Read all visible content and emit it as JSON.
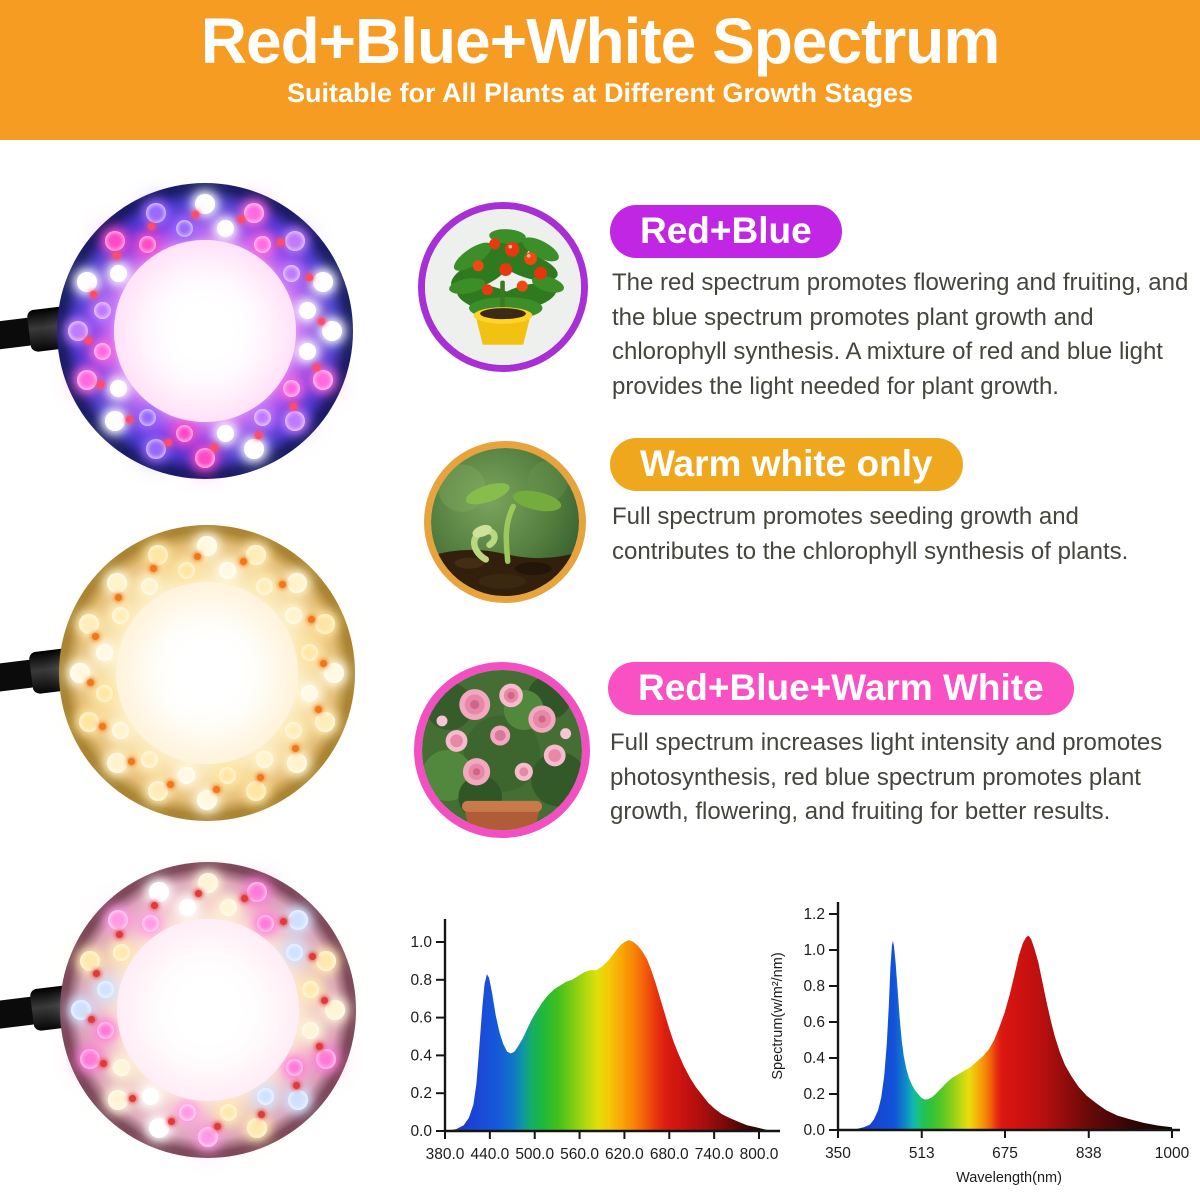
{
  "header": {
    "title": "Red+Blue+White Spectrum",
    "subtitle": "Suitable for All Plants at Different Growth Stages",
    "bg_color": "#F79C23",
    "text_color": "#FFFFFF"
  },
  "sections": [
    {
      "badge": "Red+Blue",
      "badge_color": "#C026E4",
      "description": "The red spectrum promotes flowering and fruiting, and the blue spectrum promotes plant growth and chlorophyll synthesis. A mixture of red and blue light provides the light needed for plant growth.",
      "photo_name": "fruiting-plant-in-yellow-pot",
      "photo_border_color": "#A82FD6"
    },
    {
      "badge": "Warm white only",
      "badge_color": "#EFA81E",
      "description": "Full spectrum promotes seeding growth and contributes to the chlorophyll synthesis of plants.",
      "photo_name": "seedling-sprout",
      "photo_border_color": "#E8A33C"
    },
    {
      "badge": "Red+Blue+Warm White",
      "badge_color": "#F951C3",
      "description": "Full spectrum increases light intensity and promotes photosynthesis, red blue spectrum promotes plant growth, flowering, and fruiting for better results.",
      "photo_name": "pink-roses-bush",
      "photo_border_color": "#F24FC2"
    }
  ],
  "rings": [
    {
      "name": "red-blue-ring-light",
      "label": "Red + Blue mode ring light",
      "band": [
        "#f3c9ff",
        "#c269f0",
        "#7b3be4",
        "#3e31c8",
        "#171a66"
      ],
      "led_colors": [
        "#ffffff",
        "#ff6ae0",
        "#c07cff",
        "#ffffff",
        "#ff49c8",
        "#9a6bff"
      ],
      "chip_color": "#ff4a6a",
      "center_glow": "#ffd9f6"
    },
    {
      "name": "warm-white-ring-light",
      "label": "Warm white mode ring light",
      "band": [
        "#fff7dd",
        "#fbe8bb",
        "#f5d697",
        "#e2b76c",
        "#a9822f"
      ],
      "led_colors": [
        "#fff9e2",
        "#ffedb8",
        "#fff3cc",
        "#ffe6a2"
      ],
      "chip_color": "#f07818",
      "center_glow": "#fff0d0"
    },
    {
      "name": "mixed-ring-light",
      "label": "Red + Blue + Warm white mode ring light",
      "band": [
        "#fff3e6",
        "#f9ded2",
        "#eec3c6",
        "#d9a2b6",
        "#7c4658"
      ],
      "led_colors": [
        "#fff4d6",
        "#ff7ad8",
        "#cfe2ff",
        "#ffe9ae",
        "#ff9ae4",
        "#ffffff"
      ],
      "chip_color": "#e03a3a",
      "center_glow": "#ffe8f2"
    }
  ],
  "chart_data": [
    {
      "type": "area",
      "position": "bottom-left",
      "title": "",
      "xlabel": "",
      "ylabel": "",
      "series_name": "full spectrum relative intensity",
      "xlim": [
        380,
        812
      ],
      "ylim": [
        0,
        1.05
      ],
      "grid": false,
      "legend": "none",
      "x_ticks": [
        380,
        440,
        500,
        560,
        620,
        680,
        740,
        800
      ],
      "x_tick_labels": [
        "380.0",
        "440.0",
        "500.0",
        "560.0",
        "620.0",
        "680.0",
        "740.0",
        "800.0"
      ],
      "y_ticks": [
        0,
        0.2,
        0.4,
        0.6,
        0.8,
        1.0
      ],
      "y_tick_labels": [
        "0.0",
        "0.2",
        "0.4",
        "0.6",
        "0.8",
        "1.0"
      ],
      "points": [
        [
          380,
          0
        ],
        [
          395,
          0.01
        ],
        [
          405,
          0.03
        ],
        [
          412,
          0.07
        ],
        [
          418,
          0.14
        ],
        [
          422,
          0.25
        ],
        [
          426,
          0.45
        ],
        [
          430,
          0.66
        ],
        [
          433,
          0.78
        ],
        [
          436,
          0.83
        ],
        [
          439,
          0.81
        ],
        [
          443,
          0.73
        ],
        [
          448,
          0.61
        ],
        [
          453,
          0.52
        ],
        [
          458,
          0.46
        ],
        [
          463,
          0.42
        ],
        [
          468,
          0.41
        ],
        [
          473,
          0.42
        ],
        [
          478,
          0.45
        ],
        [
          484,
          0.49
        ],
        [
          490,
          0.54
        ],
        [
          496,
          0.59
        ],
        [
          502,
          0.63
        ],
        [
          510,
          0.68
        ],
        [
          518,
          0.72
        ],
        [
          526,
          0.75
        ],
        [
          534,
          0.77
        ],
        [
          542,
          0.79
        ],
        [
          550,
          0.8
        ],
        [
          558,
          0.82
        ],
        [
          566,
          0.84
        ],
        [
          574,
          0.85
        ],
        [
          582,
          0.85
        ],
        [
          590,
          0.87
        ],
        [
          598,
          0.9
        ],
        [
          606,
          0.94
        ],
        [
          614,
          0.98
        ],
        [
          620,
          1.0
        ],
        [
          626,
          1.01
        ],
        [
          632,
          1.0
        ],
        [
          638,
          0.98
        ],
        [
          644,
          0.95
        ],
        [
          650,
          0.91
        ],
        [
          656,
          0.85
        ],
        [
          662,
          0.78
        ],
        [
          668,
          0.7
        ],
        [
          674,
          0.62
        ],
        [
          680,
          0.54
        ],
        [
          686,
          0.47
        ],
        [
          692,
          0.41
        ],
        [
          700,
          0.34
        ],
        [
          708,
          0.28
        ],
        [
          716,
          0.23
        ],
        [
          724,
          0.19
        ],
        [
          732,
          0.15
        ],
        [
          740,
          0.12
        ],
        [
          750,
          0.09
        ],
        [
          760,
          0.07
        ],
        [
          772,
          0.05
        ],
        [
          784,
          0.03
        ],
        [
          796,
          0.02
        ],
        [
          806,
          0.01
        ],
        [
          812,
          0.005
        ]
      ],
      "gradient_stops": [
        [
          380,
          "#1B2FB4"
        ],
        [
          420,
          "#1C46D6"
        ],
        [
          450,
          "#1559DA"
        ],
        [
          470,
          "#0F74C8"
        ],
        [
          485,
          "#0E98A0"
        ],
        [
          495,
          "#14AC6A"
        ],
        [
          510,
          "#1EB83C"
        ],
        [
          530,
          "#3FBF1E"
        ],
        [
          550,
          "#7BCB14"
        ],
        [
          570,
          "#B8D90E"
        ],
        [
          585,
          "#E2DE0A"
        ],
        [
          600,
          "#F5C708"
        ],
        [
          615,
          "#F9A806"
        ],
        [
          630,
          "#F98A05"
        ],
        [
          645,
          "#F5640A"
        ],
        [
          660,
          "#E93A0E"
        ],
        [
          675,
          "#DC1C10"
        ],
        [
          700,
          "#C81210"
        ],
        [
          730,
          "#A10E0C"
        ],
        [
          760,
          "#6E0A08"
        ],
        [
          790,
          "#360404"
        ],
        [
          812,
          "#180202"
        ]
      ]
    },
    {
      "type": "area",
      "position": "bottom-right",
      "title": "",
      "xlabel": "Wavelength(nm)",
      "ylabel": "Spectrum(w/m²/nm)",
      "series_name": "red + blue spectrum relative intensity",
      "xlim": [
        350,
        1000
      ],
      "ylim": [
        0,
        1.2
      ],
      "grid": false,
      "legend": "none",
      "x_ticks": [
        350,
        513,
        675,
        838,
        1000
      ],
      "x_tick_labels": [
        "350",
        "513",
        "675",
        "838",
        "1000"
      ],
      "y_ticks": [
        0,
        0.2,
        0.4,
        0.6,
        0.8,
        1.0,
        1.2
      ],
      "y_tick_labels": [
        "0.0",
        "0.2",
        "0.4",
        "0.6",
        "0.8",
        "1.0",
        "1.2"
      ],
      "points": [
        [
          350,
          0
        ],
        [
          385,
          0.005
        ],
        [
          400,
          0.015
        ],
        [
          412,
          0.03
        ],
        [
          420,
          0.06
        ],
        [
          428,
          0.11
        ],
        [
          434,
          0.18
        ],
        [
          440,
          0.3
        ],
        [
          445,
          0.48
        ],
        [
          449,
          0.7
        ],
        [
          452,
          0.9
        ],
        [
          455,
          1.03
        ],
        [
          457,
          1.05
        ],
        [
          459,
          1.02
        ],
        [
          462,
          0.93
        ],
        [
          466,
          0.78
        ],
        [
          470,
          0.62
        ],
        [
          474,
          0.5
        ],
        [
          478,
          0.41
        ],
        [
          483,
          0.34
        ],
        [
          488,
          0.29
        ],
        [
          494,
          0.25
        ],
        [
          500,
          0.22
        ],
        [
          506,
          0.2
        ],
        [
          512,
          0.18
        ],
        [
          518,
          0.17
        ],
        [
          524,
          0.17
        ],
        [
          532,
          0.18
        ],
        [
          540,
          0.2
        ],
        [
          550,
          0.23
        ],
        [
          560,
          0.26
        ],
        [
          572,
          0.29
        ],
        [
          584,
          0.31
        ],
        [
          596,
          0.33
        ],
        [
          608,
          0.35
        ],
        [
          620,
          0.38
        ],
        [
          632,
          0.41
        ],
        [
          644,
          0.45
        ],
        [
          654,
          0.5
        ],
        [
          664,
          0.57
        ],
        [
          674,
          0.65
        ],
        [
          684,
          0.75
        ],
        [
          694,
          0.87
        ],
        [
          702,
          0.97
        ],
        [
          710,
          1.04
        ],
        [
          716,
          1.07
        ],
        [
          721,
          1.08
        ],
        [
          726,
          1.06
        ],
        [
          732,
          1.01
        ],
        [
          740,
          0.93
        ],
        [
          748,
          0.82
        ],
        [
          756,
          0.71
        ],
        [
          764,
          0.61
        ],
        [
          772,
          0.52
        ],
        [
          782,
          0.43
        ],
        [
          792,
          0.36
        ],
        [
          804,
          0.3
        ],
        [
          818,
          0.24
        ],
        [
          834,
          0.19
        ],
        [
          852,
          0.15
        ],
        [
          872,
          0.11
        ],
        [
          894,
          0.08
        ],
        [
          918,
          0.06
        ],
        [
          944,
          0.04
        ],
        [
          972,
          0.025
        ],
        [
          1000,
          0.015
        ]
      ],
      "gradient_stops": [
        [
          350,
          "#1430B0"
        ],
        [
          420,
          "#1545D2"
        ],
        [
          460,
          "#1253D8"
        ],
        [
          480,
          "#0F86C6"
        ],
        [
          495,
          "#10B4B4"
        ],
        [
          505,
          "#17C287"
        ],
        [
          515,
          "#1FC25A"
        ],
        [
          530,
          "#2EC23C"
        ],
        [
          550,
          "#52C728"
        ],
        [
          570,
          "#86CD1C"
        ],
        [
          590,
          "#C0D812"
        ],
        [
          605,
          "#EBDC0C"
        ],
        [
          620,
          "#F4B409"
        ],
        [
          635,
          "#F68C08"
        ],
        [
          648,
          "#F25F0A"
        ],
        [
          658,
          "#E93210"
        ],
        [
          668,
          "#DC1810"
        ],
        [
          700,
          "#D01210"
        ],
        [
          740,
          "#BE1010"
        ],
        [
          780,
          "#9C0D0C"
        ],
        [
          840,
          "#660A08"
        ],
        [
          920,
          "#340505"
        ],
        [
          1000,
          "#140202"
        ]
      ]
    }
  ]
}
